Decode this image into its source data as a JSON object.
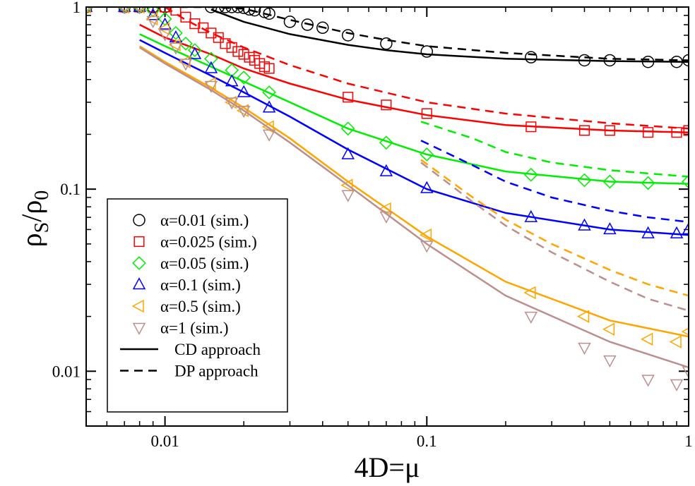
{
  "chart_data": {
    "type": "scatter",
    "xscale": "log",
    "yscale": "log",
    "xlim": [
      0.005,
      1.0
    ],
    "ylim": [
      0.005,
      1.0
    ],
    "xlabel": "4D=μ",
    "ylabel_main": "ρ",
    "ylabel_sub_s": "S",
    "ylabel_slash": "/ρ",
    "ylabel_sub_0": "0",
    "x_ticks": [
      {
        "value": 0.01,
        "label": "0.01"
      },
      {
        "value": 0.1,
        "label": "0.1"
      },
      {
        "value": 1,
        "label": "1"
      }
    ],
    "y_ticks": [
      {
        "value": 0.01,
        "label": "0.01"
      },
      {
        "value": 0.1,
        "label": "0.1"
      },
      {
        "value": 1,
        "label": "1"
      }
    ],
    "series": [
      {
        "name": "α=0.01 (sim.)",
        "color": "#000000",
        "marker": "circle",
        "sim": [
          [
            0.005,
            1
          ],
          [
            0.007,
            1
          ],
          [
            0.008,
            1
          ],
          [
            0.009,
            1
          ],
          [
            0.01,
            1
          ],
          [
            0.015,
            1
          ],
          [
            0.016,
            1
          ],
          [
            0.017,
            1
          ],
          [
            0.018,
            1
          ],
          [
            0.019,
            1
          ],
          [
            0.02,
            0.99
          ],
          [
            0.021,
            0.97
          ],
          [
            0.022,
            0.96
          ],
          [
            0.024,
            0.94
          ],
          [
            0.025,
            0.92
          ],
          [
            0.03,
            0.83
          ],
          [
            0.035,
            0.8
          ],
          [
            0.04,
            0.77
          ],
          [
            0.05,
            0.7
          ],
          [
            0.07,
            0.63
          ],
          [
            0.1,
            0.57
          ],
          [
            0.25,
            0.53
          ],
          [
            0.4,
            0.51
          ],
          [
            0.5,
            0.51
          ],
          [
            0.7,
            0.5
          ],
          [
            0.9,
            0.5
          ],
          [
            1.0,
            0.51
          ]
        ],
        "cd": [
          [
            0.015,
            0.97
          ],
          [
            0.02,
            0.83
          ],
          [
            0.03,
            0.71
          ],
          [
            0.05,
            0.62
          ],
          [
            0.07,
            0.58
          ],
          [
            0.1,
            0.55
          ],
          [
            0.2,
            0.52
          ],
          [
            0.5,
            0.505
          ],
          [
            1.0,
            0.5
          ]
        ],
        "dp": [
          [
            0.01,
            1.0
          ],
          [
            0.015,
            1.0
          ],
          [
            0.02,
            0.98
          ],
          [
            0.03,
            0.85
          ],
          [
            0.05,
            0.72
          ],
          [
            0.07,
            0.66
          ],
          [
            0.1,
            0.61
          ],
          [
            0.2,
            0.56
          ],
          [
            0.5,
            0.52
          ],
          [
            1.0,
            0.51
          ]
        ]
      },
      {
        "name": "α=0.025 (sim.)",
        "color": "#ff0000",
        "marker": "square",
        "sim": [
          [
            0.005,
            1
          ],
          [
            0.007,
            1
          ],
          [
            0.008,
            1
          ],
          [
            0.009,
            1
          ],
          [
            0.01,
            1
          ],
          [
            0.011,
            0.96
          ],
          [
            0.012,
            0.88
          ],
          [
            0.013,
            0.81
          ],
          [
            0.014,
            0.77
          ],
          [
            0.015,
            0.72
          ],
          [
            0.016,
            0.68
          ],
          [
            0.017,
            0.63
          ],
          [
            0.018,
            0.6
          ],
          [
            0.019,
            0.57
          ],
          [
            0.02,
            0.55
          ],
          [
            0.021,
            0.53
          ],
          [
            0.022,
            0.51
          ],
          [
            0.023,
            0.49
          ],
          [
            0.024,
            0.47
          ],
          [
            0.025,
            0.46
          ],
          [
            0.05,
            0.32
          ],
          [
            0.07,
            0.29
          ],
          [
            0.1,
            0.26
          ],
          [
            0.25,
            0.22
          ],
          [
            0.4,
            0.21
          ],
          [
            0.5,
            0.21
          ],
          [
            0.7,
            0.205
          ],
          [
            0.9,
            0.205
          ],
          [
            1.0,
            0.21
          ]
        ],
        "cd": [
          [
            0.008,
            0.8
          ],
          [
            0.01,
            0.68
          ],
          [
            0.015,
            0.55
          ],
          [
            0.02,
            0.46
          ],
          [
            0.03,
            0.38
          ],
          [
            0.05,
            0.31
          ],
          [
            0.1,
            0.255
          ],
          [
            0.2,
            0.225
          ],
          [
            0.5,
            0.21
          ],
          [
            1.0,
            0.205
          ]
        ],
        "dp": [
          [
            0.01,
            1.0
          ],
          [
            0.012,
            0.85
          ],
          [
            0.015,
            0.72
          ],
          [
            0.02,
            0.6
          ],
          [
            0.03,
            0.48
          ],
          [
            0.05,
            0.38
          ],
          [
            0.1,
            0.3
          ],
          [
            0.2,
            0.26
          ],
          [
            0.5,
            0.23
          ],
          [
            1.0,
            0.215
          ]
        ]
      },
      {
        "name": "α=0.05 (sim.)",
        "color": "#00ee00",
        "marker": "diamond",
        "sim": [
          [
            0.005,
            1
          ],
          [
            0.007,
            1
          ],
          [
            0.008,
            1
          ],
          [
            0.009,
            0.96
          ],
          [
            0.01,
            0.86
          ],
          [
            0.011,
            0.72
          ],
          [
            0.012,
            0.63
          ],
          [
            0.013,
            0.58
          ],
          [
            0.015,
            0.52
          ],
          [
            0.018,
            0.45
          ],
          [
            0.02,
            0.41
          ],
          [
            0.025,
            0.34
          ],
          [
            0.05,
            0.215
          ],
          [
            0.07,
            0.18
          ],
          [
            0.1,
            0.155
          ],
          [
            0.25,
            0.12
          ],
          [
            0.4,
            0.112
          ],
          [
            0.5,
            0.11
          ],
          [
            0.7,
            0.108
          ],
          [
            1.0,
            0.11
          ]
        ],
        "cd": [
          [
            0.008,
            0.71
          ],
          [
            0.01,
            0.61
          ],
          [
            0.015,
            0.47
          ],
          [
            0.02,
            0.39
          ],
          [
            0.03,
            0.3
          ],
          [
            0.05,
            0.215
          ],
          [
            0.1,
            0.155
          ],
          [
            0.2,
            0.125
          ],
          [
            0.5,
            0.11
          ],
          [
            1.0,
            0.107
          ]
        ],
        "dp": [
          [
            0.095,
            0.235
          ],
          [
            0.15,
            0.19
          ],
          [
            0.2,
            0.16
          ],
          [
            0.3,
            0.14
          ],
          [
            0.5,
            0.127
          ],
          [
            0.7,
            0.122
          ],
          [
            1.0,
            0.117
          ]
        ]
      },
      {
        "name": "α=0.1 (sim.)",
        "color": "#0000ff",
        "marker": "triangle-up",
        "sim": [
          [
            0.005,
            1
          ],
          [
            0.007,
            1
          ],
          [
            0.008,
            1
          ],
          [
            0.009,
            0.9
          ],
          [
            0.01,
            0.8
          ],
          [
            0.011,
            0.68
          ],
          [
            0.013,
            0.55
          ],
          [
            0.015,
            0.46
          ],
          [
            0.018,
            0.39
          ],
          [
            0.02,
            0.34
          ],
          [
            0.025,
            0.28
          ],
          [
            0.05,
            0.155
          ],
          [
            0.07,
            0.125
          ],
          [
            0.1,
            0.101
          ],
          [
            0.25,
            0.07
          ],
          [
            0.4,
            0.063
          ],
          [
            0.5,
            0.06
          ],
          [
            0.7,
            0.057
          ],
          [
            0.9,
            0.057
          ],
          [
            1.0,
            0.06
          ]
        ],
        "cd": [
          [
            0.008,
            0.66
          ],
          [
            0.01,
            0.56
          ],
          [
            0.015,
            0.42
          ],
          [
            0.02,
            0.34
          ],
          [
            0.03,
            0.25
          ],
          [
            0.05,
            0.165
          ],
          [
            0.1,
            0.1
          ],
          [
            0.2,
            0.074
          ],
          [
            0.5,
            0.06
          ],
          [
            1.0,
            0.056
          ]
        ],
        "dp": [
          [
            0.095,
            0.185
          ],
          [
            0.15,
            0.135
          ],
          [
            0.2,
            0.11
          ],
          [
            0.3,
            0.09
          ],
          [
            0.5,
            0.076
          ],
          [
            0.7,
            0.07
          ],
          [
            1.0,
            0.066
          ]
        ]
      },
      {
        "name": "α=0.5 (sim.)",
        "color": "#ffa500",
        "marker": "triangle-left",
        "sim": [
          [
            0.005,
            1
          ],
          [
            0.007,
            1
          ],
          [
            0.008,
            1
          ],
          [
            0.009,
            0.86
          ],
          [
            0.01,
            0.76
          ],
          [
            0.011,
            0.62
          ],
          [
            0.012,
            0.5
          ],
          [
            0.015,
            0.38
          ],
          [
            0.018,
            0.3
          ],
          [
            0.02,
            0.27
          ],
          [
            0.025,
            0.22
          ],
          [
            0.05,
            0.105
          ],
          [
            0.07,
            0.078
          ],
          [
            0.1,
            0.056
          ],
          [
            0.25,
            0.027
          ],
          [
            0.4,
            0.02
          ],
          [
            0.5,
            0.017
          ],
          [
            0.7,
            0.015
          ],
          [
            0.9,
            0.0145
          ],
          [
            1.0,
            0.0165
          ]
        ],
        "cd": [
          [
            0.008,
            0.61
          ],
          [
            0.01,
            0.5
          ],
          [
            0.015,
            0.36
          ],
          [
            0.02,
            0.28
          ],
          [
            0.03,
            0.19
          ],
          [
            0.05,
            0.11
          ],
          [
            0.1,
            0.055
          ],
          [
            0.2,
            0.031
          ],
          [
            0.5,
            0.019
          ],
          [
            1.0,
            0.0155
          ]
        ],
        "dp": [
          [
            0.095,
            0.145
          ],
          [
            0.15,
            0.09
          ],
          [
            0.2,
            0.068
          ],
          [
            0.3,
            0.05
          ],
          [
            0.5,
            0.036
          ],
          [
            0.7,
            0.03
          ],
          [
            1.0,
            0.026
          ]
        ]
      },
      {
        "name": "α=1 (sim.)",
        "color": "#bc8f8f",
        "marker": "triangle-down",
        "sim": [
          [
            0.005,
            1
          ],
          [
            0.007,
            1
          ],
          [
            0.008,
            1
          ],
          [
            0.009,
            0.84
          ],
          [
            0.01,
            0.71
          ],
          [
            0.011,
            0.6
          ],
          [
            0.012,
            0.49
          ],
          [
            0.015,
            0.37
          ],
          [
            0.018,
            0.3
          ],
          [
            0.02,
            0.27
          ],
          [
            0.025,
            0.2
          ],
          [
            0.05,
            0.093
          ],
          [
            0.07,
            0.071
          ],
          [
            0.1,
            0.049
          ],
          [
            0.25,
            0.02
          ],
          [
            0.4,
            0.0135
          ],
          [
            0.5,
            0.0115
          ],
          [
            0.7,
            0.009
          ],
          [
            0.9,
            0.0085
          ],
          [
            1.0,
            0.01
          ]
        ],
        "cd": [
          [
            0.008,
            0.6
          ],
          [
            0.01,
            0.49
          ],
          [
            0.015,
            0.35
          ],
          [
            0.02,
            0.27
          ],
          [
            0.03,
            0.18
          ],
          [
            0.05,
            0.105
          ],
          [
            0.1,
            0.05
          ],
          [
            0.2,
            0.026
          ],
          [
            0.5,
            0.0145
          ],
          [
            1.0,
            0.0105
          ]
        ],
        "dp": [
          [
            0.095,
            0.14
          ],
          [
            0.15,
            0.085
          ],
          [
            0.2,
            0.063
          ],
          [
            0.3,
            0.045
          ],
          [
            0.5,
            0.031
          ],
          [
            0.7,
            0.025
          ],
          [
            1.0,
            0.0215
          ]
        ]
      }
    ],
    "legend": {
      "position": "bottom-left",
      "line_entries": [
        {
          "label": "CD approach",
          "style": "solid"
        },
        {
          "label": "DP approach",
          "style": "dashed"
        }
      ]
    },
    "reference_line": {
      "y": 1.0,
      "color": "#ff0000",
      "style": "dashed"
    }
  }
}
